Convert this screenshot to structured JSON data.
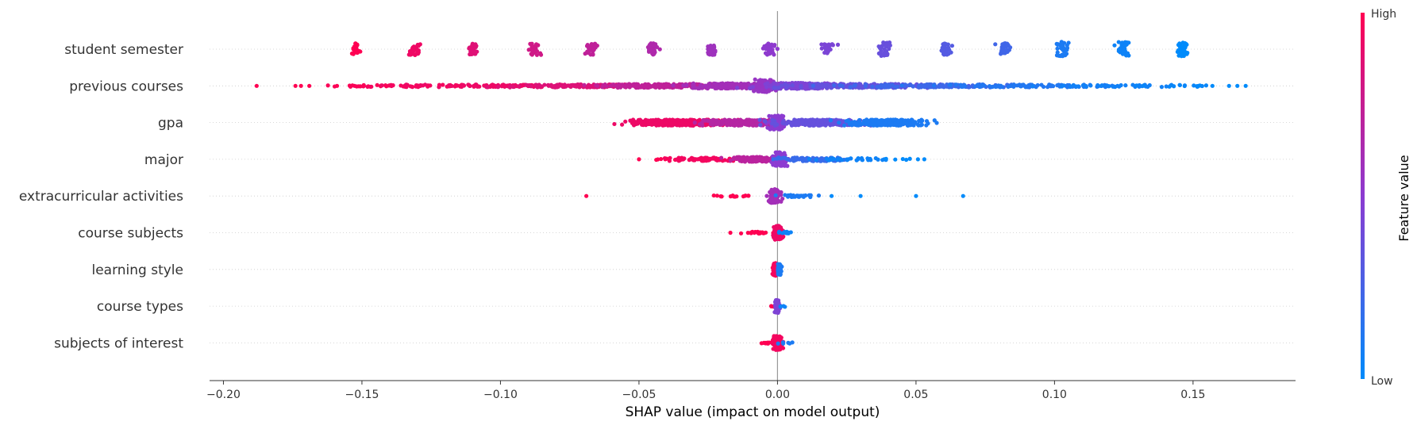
{
  "chart_data": {
    "type": "scatter",
    "subtype": "shap-beeswarm-summary",
    "title": "",
    "xlabel": "SHAP value (impact on model output)",
    "ylabel": "",
    "xlim": [
      -0.205,
      0.187
    ],
    "xticks": [
      -0.2,
      -0.15,
      -0.1,
      -0.05,
      0.0,
      0.05,
      0.1,
      0.15
    ],
    "xtick_labels": [
      "−0.20",
      "−0.15",
      "−0.10",
      "−0.05",
      "0.00",
      "0.05",
      "0.10",
      "0.15"
    ],
    "zero_line": true,
    "row_gridlines": "dotted",
    "features": [
      "student semester",
      "previous courses",
      "gpa",
      "major",
      "extracurricular activities",
      "course subjects",
      "learning style",
      "course types",
      "subjects of interest"
    ],
    "colorbar": {
      "title": "Feature value",
      "high_label": "High",
      "low_label": "Low",
      "high_color": "#ff0052",
      "low_color": "#008bfb",
      "placement": "right"
    },
    "series": [
      {
        "feature": "student semester",
        "clusters": [
          {
            "x": -0.152,
            "spread": 0.001,
            "spread_y": 0.32,
            "n": 30,
            "level": 1.0
          },
          {
            "x": -0.131,
            "spread": 0.001,
            "spread_y": 0.32,
            "n": 30,
            "level": 0.93
          },
          {
            "x": -0.11,
            "spread": 0.001,
            "spread_y": 0.32,
            "n": 30,
            "level": 0.86
          },
          {
            "x": -0.088,
            "spread": 0.001,
            "spread_y": 0.32,
            "n": 30,
            "level": 0.79
          },
          {
            "x": -0.067,
            "spread": 0.001,
            "spread_y": 0.32,
            "n": 30,
            "level": 0.72
          },
          {
            "x": -0.045,
            "spread": 0.001,
            "spread_y": 0.32,
            "n": 30,
            "level": 0.65
          },
          {
            "x": -0.024,
            "spread": 0.001,
            "spread_y": 0.32,
            "n": 30,
            "level": 0.58
          },
          {
            "x": -0.003,
            "spread": 0.001,
            "spread_y": 0.32,
            "n": 30,
            "level": 0.51
          },
          {
            "x": 0.018,
            "spread": 0.001,
            "spread_y": 0.28,
            "n": 24,
            "level": 0.44
          },
          {
            "x": 0.039,
            "spread": 0.001,
            "spread_y": 0.38,
            "n": 34,
            "level": 0.37
          },
          {
            "x": 0.061,
            "spread": 0.001,
            "spread_y": 0.32,
            "n": 30,
            "level": 0.3
          },
          {
            "x": 0.082,
            "spread": 0.001,
            "spread_y": 0.32,
            "n": 30,
            "level": 0.23
          },
          {
            "x": 0.103,
            "spread": 0.001,
            "spread_y": 0.4,
            "n": 36,
            "level": 0.1
          },
          {
            "x": 0.125,
            "spread": 0.001,
            "spread_y": 0.4,
            "n": 36,
            "level": 0.05
          },
          {
            "x": 0.146,
            "spread": 0.001,
            "spread_y": 0.38,
            "n": 34,
            "level": 0.0
          }
        ]
      },
      {
        "feature": "previous courses",
        "clusters": [
          {
            "x": -0.188,
            "spread": 0.0,
            "spread_y": 0.0,
            "n": 1,
            "level": 1.0
          },
          {
            "x": -0.174,
            "spread": 0.0,
            "spread_y": 0.0,
            "n": 1,
            "level": 1.0
          },
          {
            "x": -0.172,
            "spread": 0.0,
            "spread_y": 0.0,
            "n": 1,
            "level": 1.0
          },
          {
            "x": -0.169,
            "spread": 0.0,
            "spread_y": 0.0,
            "n": 1,
            "level": 1.0
          },
          {
            "x": -0.159,
            "spread": 0.0,
            "spread_y": 0.0,
            "n": 1,
            "level": 1.0
          },
          {
            "x": -0.15,
            "spread": 0.006,
            "spread_y": 0.05,
            "n": 20,
            "level": 0.98
          },
          {
            "x": -0.128,
            "spread": 0.012,
            "spread_y": 0.06,
            "n": 50,
            "level": 0.95
          },
          {
            "x": -0.1,
            "spread": 0.015,
            "spread_y": 0.07,
            "n": 90,
            "level": 0.92
          },
          {
            "x": -0.07,
            "spread": 0.015,
            "spread_y": 0.08,
            "n": 140,
            "level": 0.85
          },
          {
            "x": -0.04,
            "spread": 0.012,
            "spread_y": 0.1,
            "n": 200,
            "level": 0.72
          },
          {
            "x": -0.015,
            "spread": 0.008,
            "spread_y": 0.14,
            "n": 220,
            "level": 0.6
          },
          {
            "x": -0.005,
            "spread": 0.002,
            "spread_y": 0.35,
            "n": 80,
            "level": 0.55
          },
          {
            "x": 0.008,
            "spread": 0.006,
            "spread_y": 0.16,
            "n": 220,
            "level": 0.45
          },
          {
            "x": 0.03,
            "spread": 0.012,
            "spread_y": 0.11,
            "n": 200,
            "level": 0.36
          },
          {
            "x": 0.06,
            "spread": 0.015,
            "spread_y": 0.08,
            "n": 150,
            "level": 0.22
          },
          {
            "x": 0.09,
            "spread": 0.015,
            "spread_y": 0.07,
            "n": 90,
            "level": 0.12
          },
          {
            "x": 0.12,
            "spread": 0.012,
            "spread_y": 0.06,
            "n": 45,
            "level": 0.06
          },
          {
            "x": 0.145,
            "spread": 0.006,
            "spread_y": 0.05,
            "n": 15,
            "level": 0.03
          },
          {
            "x": 0.152,
            "spread": 0.0,
            "spread_y": 0.0,
            "n": 1,
            "level": 0.0
          },
          {
            "x": 0.157,
            "spread": 0.0,
            "spread_y": 0.0,
            "n": 1,
            "level": 0.0
          },
          {
            "x": 0.163,
            "spread": 0.0,
            "spread_y": 0.0,
            "n": 1,
            "level": 0.0
          },
          {
            "x": 0.166,
            "spread": 0.0,
            "spread_y": 0.0,
            "n": 1,
            "level": 0.0
          },
          {
            "x": 0.169,
            "spread": 0.0,
            "spread_y": 0.0,
            "n": 1,
            "level": 0.0
          }
        ]
      },
      {
        "feature": "gpa",
        "clusters": [
          {
            "x": -0.035,
            "spread": 0.009,
            "spread_y": 0.16,
            "n": 260,
            "level": 0.92
          },
          {
            "x": -0.012,
            "spread": 0.007,
            "spread_y": 0.16,
            "n": 260,
            "level": 0.68
          },
          {
            "x": 0.0,
            "spread": 0.0015,
            "spread_y": 0.38,
            "n": 120,
            "level": 0.5
          },
          {
            "x": 0.015,
            "spread": 0.008,
            "spread_y": 0.16,
            "n": 260,
            "level": 0.36
          },
          {
            "x": 0.04,
            "spread": 0.007,
            "spread_y": 0.16,
            "n": 240,
            "level": 0.1
          }
        ]
      },
      {
        "feature": "major",
        "clusters": [
          {
            "x": -0.05,
            "spread": 0.0,
            "spread_y": 0.0,
            "n": 1,
            "level": 1.0
          },
          {
            "x": -0.042,
            "spread": 0.004,
            "spread_y": 0.04,
            "n": 6,
            "level": 1.0
          },
          {
            "x": -0.025,
            "spread": 0.007,
            "spread_y": 0.09,
            "n": 80,
            "level": 0.95
          },
          {
            "x": -0.008,
            "spread": 0.004,
            "spread_y": 0.13,
            "n": 150,
            "level": 0.7
          },
          {
            "x": 0.001,
            "spread": 0.0012,
            "spread_y": 0.38,
            "n": 90,
            "level": 0.5
          },
          {
            "x": 0.012,
            "spread": 0.006,
            "spread_y": 0.1,
            "n": 90,
            "level": 0.2
          },
          {
            "x": 0.028,
            "spread": 0.007,
            "spread_y": 0.06,
            "n": 35,
            "level": 0.05
          },
          {
            "x": 0.043,
            "spread": 0.004,
            "spread_y": 0.03,
            "n": 6,
            "level": 0.0
          },
          {
            "x": 0.053,
            "spread": 0.0,
            "spread_y": 0.0,
            "n": 1,
            "level": 0.0
          }
        ]
      },
      {
        "feature": "extracurricular activities",
        "clusters": [
          {
            "x": -0.069,
            "spread": 0.0,
            "spread_y": 0.0,
            "n": 1,
            "level": 1.0
          },
          {
            "x": -0.016,
            "spread": 0.004,
            "spread_y": 0.04,
            "n": 14,
            "level": 1.0
          },
          {
            "x": -0.001,
            "spread": 0.001,
            "spread_y": 0.38,
            "n": 80,
            "level": 0.6
          },
          {
            "x": 0.008,
            "spread": 0.004,
            "spread_y": 0.06,
            "n": 30,
            "level": 0.1
          },
          {
            "x": 0.02,
            "spread": 0.001,
            "spread_y": 0.0,
            "n": 1,
            "level": 0.0
          },
          {
            "x": 0.03,
            "spread": 0.0,
            "spread_y": 0.0,
            "n": 1,
            "level": 0.0
          },
          {
            "x": 0.05,
            "spread": 0.0,
            "spread_y": 0.0,
            "n": 1,
            "level": 0.0
          },
          {
            "x": 0.067,
            "spread": 0.0,
            "spread_y": 0.0,
            "n": 1,
            "level": 0.0
          }
        ]
      },
      {
        "feature": "course subjects",
        "clusters": [
          {
            "x": -0.017,
            "spread": 0.0,
            "spread_y": 0.0,
            "n": 1,
            "level": 1.0
          },
          {
            "x": -0.005,
            "spread": 0.003,
            "spread_y": 0.05,
            "n": 25,
            "level": 1.0
          },
          {
            "x": 0.0,
            "spread": 0.0008,
            "spread_y": 0.38,
            "n": 80,
            "level": 0.92
          },
          {
            "x": 0.004,
            "spread": 0.0015,
            "spread_y": 0.05,
            "n": 12,
            "level": 0.05
          }
        ]
      },
      {
        "feature": "learning style",
        "clusters": [
          {
            "x": -0.001,
            "spread": 0.0004,
            "spread_y": 0.36,
            "n": 70,
            "level": 0.95
          },
          {
            "x": 0.0007,
            "spread": 0.0003,
            "spread_y": 0.3,
            "n": 40,
            "level": 0.1
          }
        ]
      },
      {
        "feature": "course types",
        "clusters": [
          {
            "x": -0.001,
            "spread": 0.0008,
            "spread_y": 0.05,
            "n": 5,
            "level": 1.0
          },
          {
            "x": 0.0,
            "spread": 0.0004,
            "spread_y": 0.36,
            "n": 60,
            "level": 0.45
          },
          {
            "x": 0.002,
            "spread": 0.0008,
            "spread_y": 0.04,
            "n": 4,
            "level": 0.05
          }
        ]
      },
      {
        "feature": "subjects of interest",
        "clusters": [
          {
            "x": -0.003,
            "spread": 0.0015,
            "spread_y": 0.05,
            "n": 14,
            "level": 1.0
          },
          {
            "x": 0.0,
            "spread": 0.0008,
            "spread_y": 0.38,
            "n": 80,
            "level": 0.95
          },
          {
            "x": 0.003,
            "spread": 0.001,
            "spread_y": 0.04,
            "n": 6,
            "level": 0.1
          }
        ]
      }
    ]
  }
}
